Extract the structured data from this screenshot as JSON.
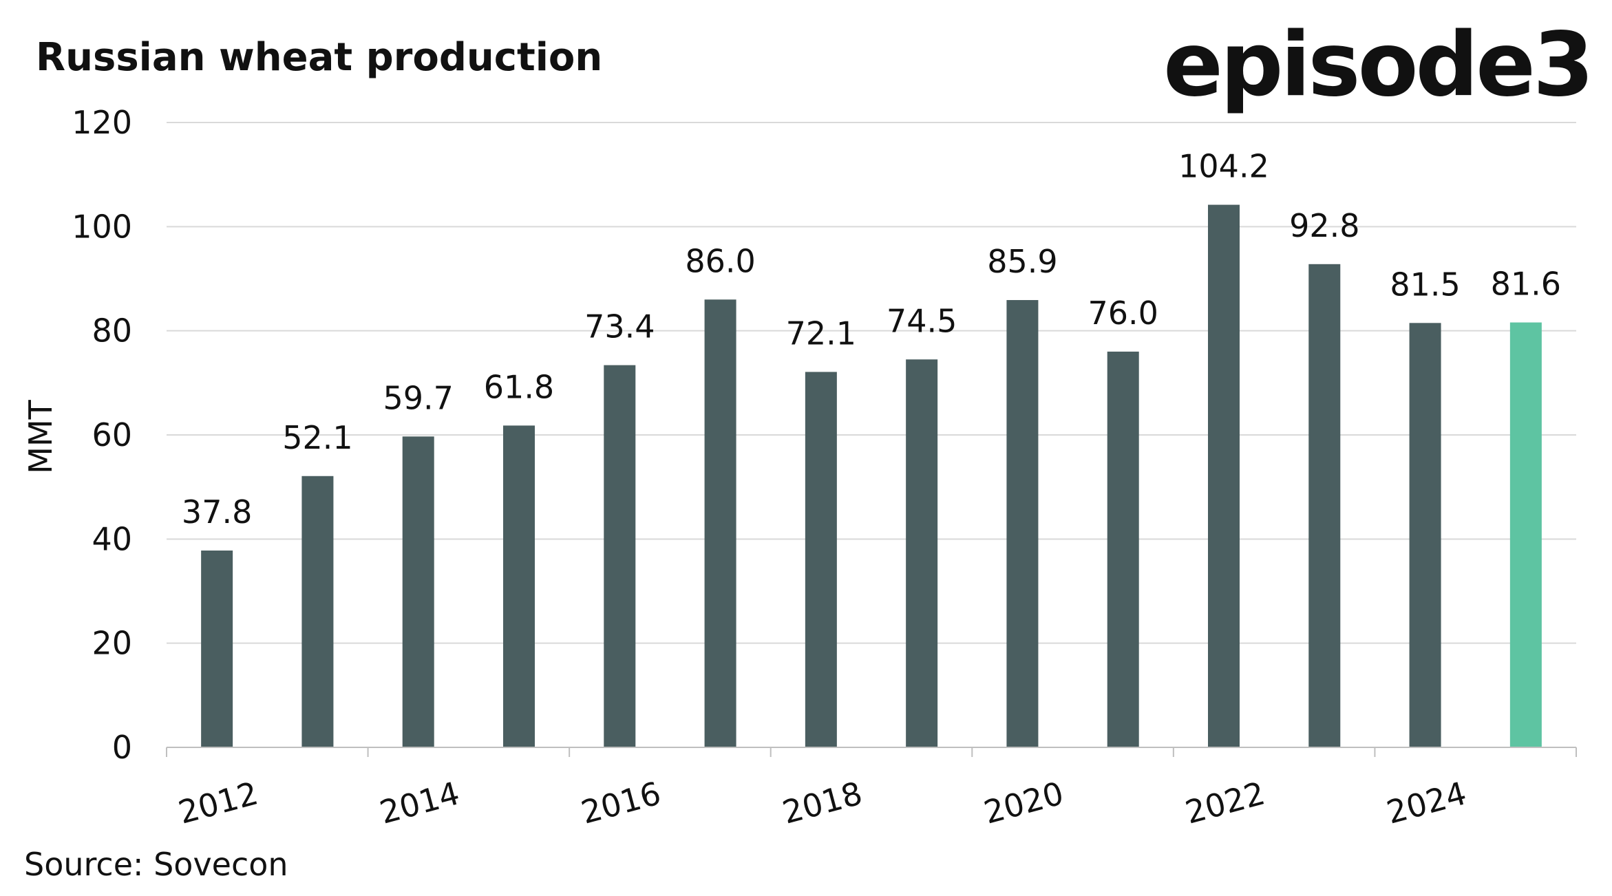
{
  "chart_title": "Russian wheat production",
  "brand": "episode3",
  "source": "Source: Sovecon",
  "colors": {
    "bar": "#4a5e60",
    "highlight": "#5ec4a2",
    "grid": "#d9d9d9",
    "text": "#111111"
  },
  "chart_data": {
    "type": "bar",
    "title": "Russian wheat production",
    "xlabel": "",
    "ylabel": "MMT",
    "ylim": [
      0,
      120
    ],
    "yticks": [
      0,
      20,
      40,
      60,
      80,
      100,
      120
    ],
    "xtick_labels": [
      "2012",
      "2014",
      "2016",
      "2018",
      "2020",
      "2022",
      "2024"
    ],
    "grid": "horizontal",
    "categories": [
      "2012",
      "2013",
      "2014",
      "2015",
      "2016",
      "2017",
      "2018",
      "2019",
      "2020",
      "2021",
      "2022",
      "2023",
      "2024",
      "2025"
    ],
    "values": [
      37.8,
      52.1,
      59.7,
      61.8,
      73.4,
      86.0,
      72.1,
      74.5,
      85.9,
      76.0,
      104.2,
      92.8,
      81.5,
      81.6
    ],
    "value_labels": [
      "37.8",
      "52.1",
      "59.7",
      "61.8",
      "73.4",
      "86.0",
      "72.1",
      "74.5",
      "85.9",
      "76.0",
      "104.2",
      "92.8",
      "81.5",
      "81.6"
    ],
    "highlighted_index": 13
  }
}
